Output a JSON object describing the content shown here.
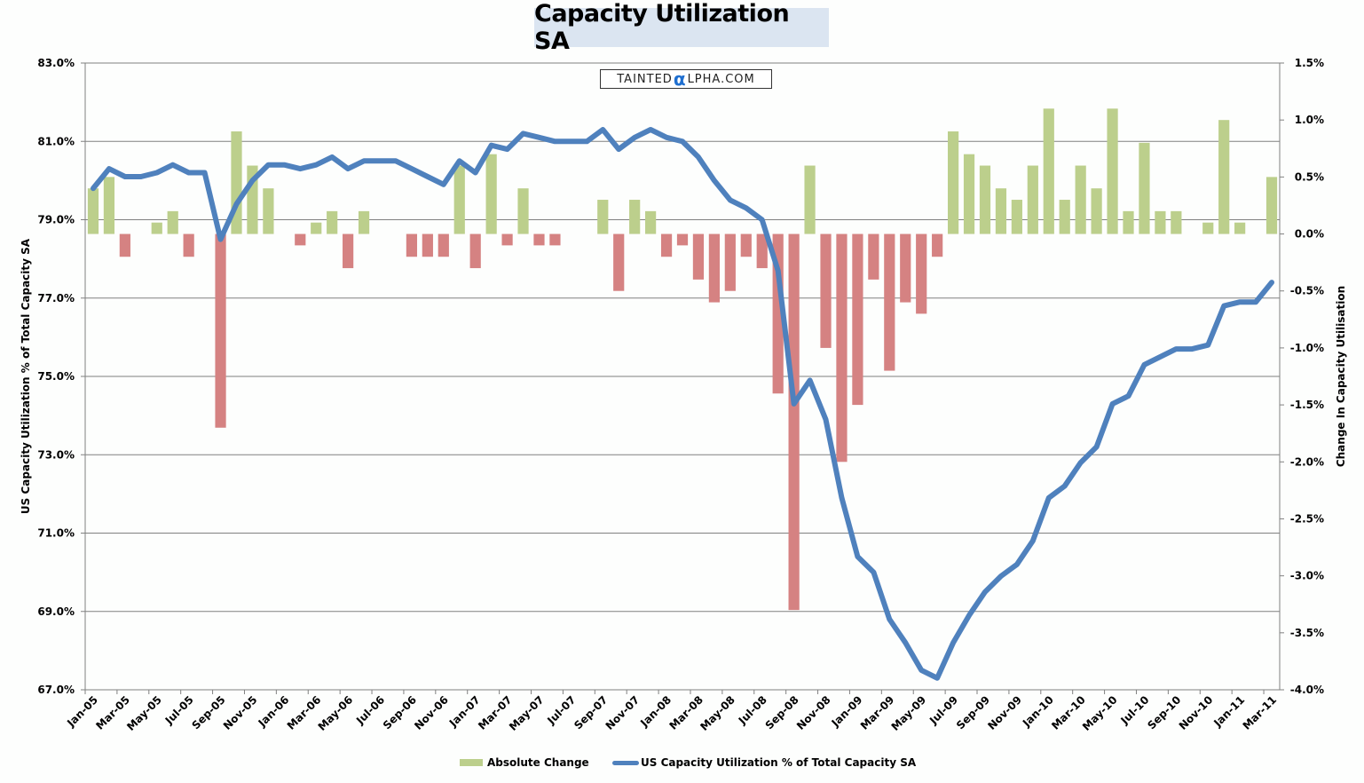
{
  "title": "Capacity Utilization SA",
  "logo": {
    "pre": "TAINTED",
    "alpha": "α",
    "post": "LPHA.COM"
  },
  "legend": {
    "bar_label": "Absolute Change",
    "line_label": "US Capacity Utilization % of Total Capacity SA"
  },
  "colors": {
    "line": "#4f81bd",
    "bar_positive": "#bccf8c",
    "bar_negative": "#d58282",
    "gridline": "#808080",
    "title_bg": "#dbe5f1"
  },
  "chart_data": {
    "type": "bar+line",
    "title": "Capacity Utilization SA",
    "ylabel_left": "US Capacity Utilization % of Total Capacity SA",
    "ylabel_right": "Change In Capacity Utilisation",
    "xlabel": "",
    "ylim_left": [
      67.0,
      83.0
    ],
    "ylim_right": [
      -4.0,
      1.5
    ],
    "left_ticks": [
      "83.0%",
      "81.0%",
      "79.0%",
      "77.0%",
      "75.0%",
      "73.0%",
      "71.0%",
      "69.0%",
      "67.0%"
    ],
    "left_tick_values": [
      83,
      81,
      79,
      77,
      75,
      73,
      71,
      69,
      67
    ],
    "right_ticks": [
      "1.5%",
      "1.0%",
      "0.5%",
      "0.0%",
      "-0.5%",
      "-1.0%",
      "-1.5%",
      "-2.0%",
      "-2.5%",
      "-3.0%",
      "-3.5%",
      "-4.0%"
    ],
    "right_tick_values": [
      1.5,
      1.0,
      0.5,
      0.0,
      -0.5,
      -1.0,
      -1.5,
      -2.0,
      -2.5,
      -3.0,
      -3.5,
      -4.0
    ],
    "grid": true,
    "legend_position": "bottom",
    "x_tick_labels": [
      "Jan-05",
      "Mar-05",
      "May-05",
      "Jul-05",
      "Sep-05",
      "Nov-05",
      "Jan-06",
      "Mar-06",
      "May-06",
      "Jul-06",
      "Sep-06",
      "Nov-06",
      "Jan-07",
      "Mar-07",
      "May-07",
      "Jul-07",
      "Sep-07",
      "Nov-07",
      "Jan-08",
      "Mar-08",
      "May-08",
      "Jul-08",
      "Sep-08",
      "Nov-08",
      "Jan-09",
      "Mar-09",
      "May-09",
      "Jul-09",
      "Sep-09",
      "Nov-09",
      "Jan-10",
      "Mar-10",
      "May-10",
      "Jul-10",
      "Sep-10",
      "Nov-10",
      "Jan-11",
      "Mar-11"
    ],
    "x": [
      "Jan-05",
      "Feb-05",
      "Mar-05",
      "Apr-05",
      "May-05",
      "Jun-05",
      "Jul-05",
      "Aug-05",
      "Sep-05",
      "Oct-05",
      "Nov-05",
      "Dec-05",
      "Jan-06",
      "Feb-06",
      "Mar-06",
      "Apr-06",
      "May-06",
      "Jun-06",
      "Jul-06",
      "Aug-06",
      "Sep-06",
      "Oct-06",
      "Nov-06",
      "Dec-06",
      "Jan-07",
      "Feb-07",
      "Mar-07",
      "Apr-07",
      "May-07",
      "Jun-07",
      "Jul-07",
      "Aug-07",
      "Sep-07",
      "Oct-07",
      "Nov-07",
      "Dec-07",
      "Jan-08",
      "Feb-08",
      "Mar-08",
      "Apr-08",
      "May-08",
      "Jun-08",
      "Jul-08",
      "Aug-08",
      "Sep-08",
      "Oct-08",
      "Nov-08",
      "Dec-08",
      "Jan-09",
      "Feb-09",
      "Mar-09",
      "Apr-09",
      "May-09",
      "Jun-09",
      "Jul-09",
      "Aug-09",
      "Sep-09",
      "Oct-09",
      "Nov-09",
      "Dec-09",
      "Jan-10",
      "Feb-10",
      "Mar-10",
      "Apr-10",
      "May-10",
      "Jun-10",
      "Jul-10",
      "Aug-10",
      "Sep-10",
      "Oct-10",
      "Nov-10",
      "Dec-10",
      "Jan-11",
      "Feb-11",
      "Mar-11"
    ],
    "series": [
      {
        "name": "Absolute Change",
        "type": "bar",
        "axis": "right",
        "values": [
          0.4,
          0.5,
          -0.2,
          0.0,
          0.1,
          0.2,
          -0.2,
          0.0,
          -1.7,
          0.9,
          0.6,
          0.4,
          0.0,
          -0.1,
          0.1,
          0.2,
          -0.3,
          0.2,
          0.0,
          0.0,
          -0.2,
          -0.2,
          -0.2,
          0.6,
          -0.3,
          0.7,
          -0.1,
          0.4,
          -0.1,
          -0.1,
          0.0,
          0.0,
          0.3,
          -0.5,
          0.3,
          0.2,
          -0.2,
          -0.1,
          -0.4,
          -0.6,
          -0.5,
          -0.2,
          -0.3,
          -1.4,
          -3.3,
          0.6,
          -1.0,
          -2.0,
          -1.5,
          -0.4,
          -1.2,
          -0.6,
          -0.7,
          -0.2,
          0.9,
          0.7,
          0.6,
          0.4,
          0.3,
          0.6,
          1.1,
          0.3,
          0.6,
          0.4,
          1.1,
          0.2,
          0.8,
          0.2,
          0.2,
          0.0,
          0.1,
          1.0,
          0.1,
          0.0,
          0.5
        ]
      },
      {
        "name": "US Capacity Utilization % of Total Capacity SA",
        "type": "line",
        "axis": "left",
        "values": [
          79.8,
          80.3,
          80.1,
          80.1,
          80.2,
          80.4,
          80.2,
          80.2,
          78.5,
          79.4,
          80.0,
          80.4,
          80.4,
          80.3,
          80.4,
          80.6,
          80.3,
          80.5,
          80.5,
          80.5,
          80.3,
          80.1,
          79.9,
          80.5,
          80.2,
          80.9,
          80.8,
          81.2,
          81.1,
          81.0,
          81.0,
          81.0,
          81.3,
          80.8,
          81.1,
          81.3,
          81.1,
          81.0,
          80.6,
          80.0,
          79.5,
          79.3,
          79.0,
          77.7,
          74.3,
          74.9,
          73.9,
          71.9,
          70.4,
          70.0,
          68.8,
          68.2,
          67.5,
          67.3,
          68.2,
          68.9,
          69.5,
          69.9,
          70.2,
          70.8,
          71.9,
          72.2,
          72.8,
          73.2,
          74.3,
          74.5,
          75.3,
          75.5,
          75.7,
          75.7,
          75.8,
          76.8,
          76.9,
          76.9,
          77.4
        ]
      }
    ]
  }
}
